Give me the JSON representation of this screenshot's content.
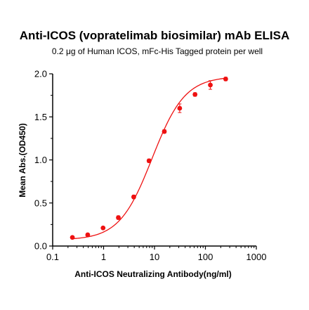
{
  "chart_data": {
    "type": "scatter",
    "title": "Anti-ICOS (vopratelimab biosimilar) mAb ELISA",
    "subtitle": "0.2 μg of Human ICOS, mFc-His Tagged protein per well",
    "xlabel": "Anti-ICOS Neutralizing Antibody(ng/ml)",
    "ylabel": "Mean Abs.(OD450)",
    "x_scale": "log",
    "xlim": [
      0.1,
      1000
    ],
    "ylim": [
      0,
      2.0
    ],
    "x_ticks": [
      "0.1",
      "1",
      "10",
      "100",
      "1000"
    ],
    "y_ticks": [
      "0.0",
      "0.5",
      "1.0",
      "1.5",
      "2.0"
    ],
    "grid": false,
    "legend": "none",
    "color": "#ee1111",
    "series": [
      {
        "x": [
          0.244,
          0.488,
          0.977,
          1.95,
          3.91,
          7.81,
          15.6,
          31.25,
          62.5,
          125,
          250
        ],
        "y": [
          0.1,
          0.13,
          0.21,
          0.33,
          0.57,
          0.99,
          1.33,
          1.6,
          1.76,
          1.87,
          1.94
        ],
        "error": [
          0.01,
          0.01,
          0.01,
          0.02,
          0.02,
          0.02,
          0.02,
          0.05,
          0.02,
          0.05,
          0.02
        ]
      }
    ],
    "fit": {
      "model": "4PL",
      "bottom": 0.07,
      "top": 1.97,
      "ec50": 9.0,
      "hill": 1.35
    }
  }
}
